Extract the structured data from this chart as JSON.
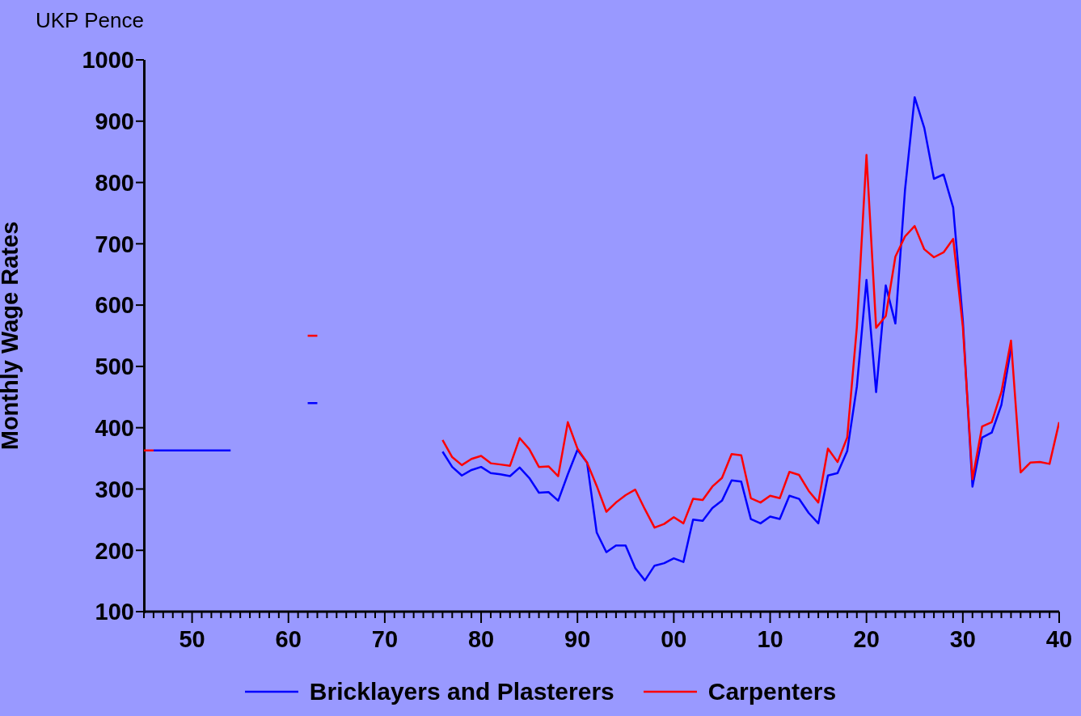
{
  "chart_data": {
    "type": "line",
    "ylabel": "Monthly Wage Rates",
    "annotations": [
      "UKP Pence"
    ],
    "x": [
      1845,
      1846,
      1847,
      1848,
      1849,
      1850,
      1851,
      1852,
      1853,
      1854,
      1855,
      1856,
      1857,
      1858,
      1859,
      1860,
      1861,
      1862,
      1863,
      1864,
      1865,
      1866,
      1867,
      1868,
      1869,
      1870,
      1871,
      1872,
      1873,
      1874,
      1875,
      1876,
      1877,
      1878,
      1879,
      1880,
      1881,
      1882,
      1883,
      1884,
      1885,
      1886,
      1887,
      1888,
      1889,
      1890,
      1891,
      1892,
      1893,
      1894,
      1895,
      1896,
      1897,
      1898,
      1899,
      1900,
      1901,
      1902,
      1903,
      1904,
      1905,
      1906,
      1907,
      1908,
      1909,
      1910,
      1911,
      1912,
      1913,
      1914,
      1915,
      1916,
      1917,
      1918,
      1919,
      1920,
      1921,
      1922,
      1923,
      1924,
      1925,
      1926,
      1927,
      1928,
      1929,
      1930,
      1931,
      1932,
      1933,
      1934,
      1935,
      1936,
      1937,
      1938,
      1939,
      1940
    ],
    "series": [
      {
        "name": "Bricklayers and Plasterers",
        "color": "#0000ff",
        "values": [
          null,
          363,
          363,
          363,
          363,
          363,
          363,
          363,
          363,
          363,
          null,
          null,
          null,
          null,
          null,
          null,
          null,
          440,
          440,
          null,
          null,
          null,
          null,
          null,
          null,
          null,
          null,
          null,
          null,
          null,
          null,
          361,
          336,
          322,
          331,
          336,
          326,
          324,
          321,
          335,
          318,
          294,
          295,
          281,
          324,
          364,
          343,
          229,
          197,
          208,
          208,
          171,
          151,
          175,
          179,
          187,
          181,
          250,
          248,
          269,
          281,
          314,
          312,
          251,
          244,
          255,
          251,
          289,
          284,
          261,
          244,
          322,
          326,
          362,
          467,
          641,
          458,
          632,
          570,
          788,
          939,
          889,
          806,
          813,
          759,
          575,
          304,
          384,
          392,
          437,
          529,
          null,
          null,
          null,
          null,
          null
        ]
      },
      {
        "name": "Carpenters",
        "color": "#ff0000",
        "values": [
          363,
          363,
          null,
          null,
          null,
          null,
          null,
          null,
          null,
          null,
          null,
          null,
          null,
          null,
          null,
          null,
          null,
          550,
          550,
          null,
          null,
          null,
          null,
          null,
          null,
          null,
          null,
          null,
          null,
          null,
          null,
          380,
          352,
          339,
          349,
          354,
          342,
          340,
          338,
          383,
          365,
          336,
          337,
          321,
          409,
          366,
          343,
          305,
          263,
          278,
          290,
          299,
          267,
          237,
          243,
          254,
          244,
          284,
          282,
          304,
          318,
          357,
          355,
          285,
          278,
          289,
          285,
          328,
          323,
          297,
          278,
          366,
          344,
          384,
          564,
          845,
          563,
          582,
          679,
          712,
          729,
          691,
          678,
          686,
          708,
          565,
          316,
          402,
          409,
          458,
          542,
          327,
          343,
          344,
          341,
          409
        ]
      }
    ],
    "xlim": [
      1845,
      1940
    ],
    "xticks": [
      {
        "value": 1845,
        "label": null
      },
      {
        "value": 1846,
        "label": null
      },
      {
        "value": 1847,
        "label": null
      },
      {
        "value": 1848,
        "label": null
      },
      {
        "value": 1849,
        "label": null
      },
      {
        "value": 1850,
        "label": "50"
      },
      {
        "value": 1851,
        "label": null
      },
      {
        "value": 1852,
        "label": null
      },
      {
        "value": 1853,
        "label": null
      },
      {
        "value": 1854,
        "label": null
      },
      {
        "value": 1855,
        "label": null
      },
      {
        "value": 1856,
        "label": null
      },
      {
        "value": 1857,
        "label": null
      },
      {
        "value": 1858,
        "label": null
      },
      {
        "value": 1859,
        "label": null
      },
      {
        "value": 1860,
        "label": "60"
      },
      {
        "value": 1861,
        "label": null
      },
      {
        "value": 1862,
        "label": null
      },
      {
        "value": 1863,
        "label": null
      },
      {
        "value": 1864,
        "label": null
      },
      {
        "value": 1865,
        "label": null
      },
      {
        "value": 1866,
        "label": null
      },
      {
        "value": 1867,
        "label": null
      },
      {
        "value": 1868,
        "label": null
      },
      {
        "value": 1869,
        "label": null
      },
      {
        "value": 1870,
        "label": "70"
      },
      {
        "value": 1871,
        "label": null
      },
      {
        "value": 1872,
        "label": null
      },
      {
        "value": 1873,
        "label": null
      },
      {
        "value": 1874,
        "label": null
      },
      {
        "value": 1875,
        "label": null
      },
      {
        "value": 1876,
        "label": null
      },
      {
        "value": 1877,
        "label": null
      },
      {
        "value": 1878,
        "label": null
      },
      {
        "value": 1879,
        "label": null
      },
      {
        "value": 1880,
        "label": "80"
      },
      {
        "value": 1881,
        "label": null
      },
      {
        "value": 1882,
        "label": null
      },
      {
        "value": 1883,
        "label": null
      },
      {
        "value": 1884,
        "label": null
      },
      {
        "value": 1885,
        "label": null
      },
      {
        "value": 1886,
        "label": null
      },
      {
        "value": 1887,
        "label": null
      },
      {
        "value": 1888,
        "label": null
      },
      {
        "value": 1889,
        "label": null
      },
      {
        "value": 1890,
        "label": "90"
      },
      {
        "value": 1891,
        "label": null
      },
      {
        "value": 1892,
        "label": null
      },
      {
        "value": 1893,
        "label": null
      },
      {
        "value": 1894,
        "label": null
      },
      {
        "value": 1895,
        "label": null
      },
      {
        "value": 1896,
        "label": null
      },
      {
        "value": 1897,
        "label": null
      },
      {
        "value": 1898,
        "label": null
      },
      {
        "value": 1899,
        "label": null
      },
      {
        "value": 1900,
        "label": "00"
      },
      {
        "value": 1901,
        "label": null
      },
      {
        "value": 1902,
        "label": null
      },
      {
        "value": 1903,
        "label": null
      },
      {
        "value": 1904,
        "label": null
      },
      {
        "value": 1905,
        "label": null
      },
      {
        "value": 1906,
        "label": null
      },
      {
        "value": 1907,
        "label": null
      },
      {
        "value": 1908,
        "label": null
      },
      {
        "value": 1909,
        "label": null
      },
      {
        "value": 1910,
        "label": "10"
      },
      {
        "value": 1911,
        "label": null
      },
      {
        "value": 1912,
        "label": null
      },
      {
        "value": 1913,
        "label": null
      },
      {
        "value": 1914,
        "label": null
      },
      {
        "value": 1915,
        "label": null
      },
      {
        "value": 1916,
        "label": null
      },
      {
        "value": 1917,
        "label": null
      },
      {
        "value": 1918,
        "label": null
      },
      {
        "value": 1919,
        "label": null
      },
      {
        "value": 1920,
        "label": "20"
      },
      {
        "value": 1921,
        "label": null
      },
      {
        "value": 1922,
        "label": null
      },
      {
        "value": 1923,
        "label": null
      },
      {
        "value": 1924,
        "label": null
      },
      {
        "value": 1925,
        "label": null
      },
      {
        "value": 1926,
        "label": null
      },
      {
        "value": 1927,
        "label": null
      },
      {
        "value": 1928,
        "label": null
      },
      {
        "value": 1929,
        "label": null
      },
      {
        "value": 1930,
        "label": "30"
      },
      {
        "value": 1931,
        "label": null
      },
      {
        "value": 1932,
        "label": null
      },
      {
        "value": 1933,
        "label": null
      },
      {
        "value": 1934,
        "label": null
      },
      {
        "value": 1935,
        "label": null
      },
      {
        "value": 1936,
        "label": null
      },
      {
        "value": 1937,
        "label": null
      },
      {
        "value": 1938,
        "label": null
      },
      {
        "value": 1939,
        "label": null
      },
      {
        "value": 1940,
        "label": "40"
      }
    ],
    "ylim": [
      100,
      1000
    ],
    "yticks": [
      100,
      200,
      300,
      400,
      500,
      600,
      700,
      800,
      900,
      1000
    ],
    "grid": false,
    "legend": "bottom",
    "marker": "none",
    "line_style": "solid"
  }
}
